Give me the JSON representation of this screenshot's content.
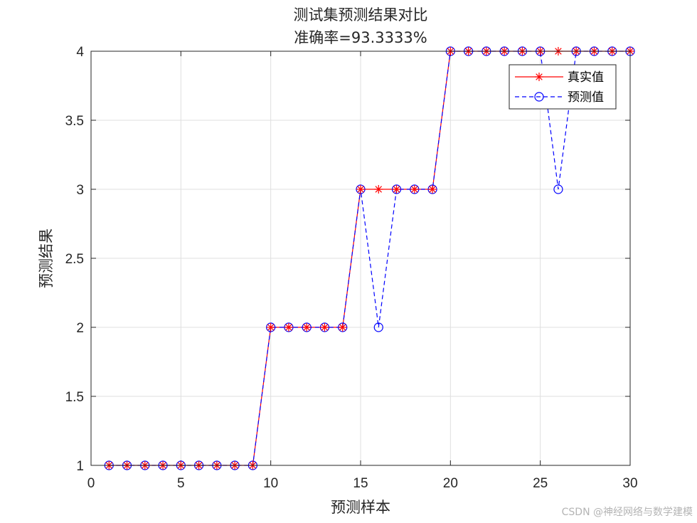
{
  "chart_data": {
    "type": "line",
    "title": "测试集预测结果对比",
    "subtitle": "准确率=93.3333%",
    "xlabel": "预测样本",
    "ylabel": "预测结果",
    "xlim": [
      0,
      30
    ],
    "ylim": [
      1,
      4
    ],
    "xticks": [
      0,
      5,
      10,
      15,
      20,
      25,
      30
    ],
    "yticks": [
      1,
      1.5,
      2,
      2.5,
      3,
      3.5,
      4
    ],
    "grid": true,
    "legend_position": "top-right",
    "x": [
      1,
      2,
      3,
      4,
      5,
      6,
      7,
      8,
      9,
      10,
      11,
      12,
      13,
      14,
      15,
      16,
      17,
      18,
      19,
      20,
      21,
      22,
      23,
      24,
      25,
      26,
      27,
      28,
      29,
      30
    ],
    "series": [
      {
        "name": "真实值",
        "color": "#ff0000",
        "line_style": "solid",
        "marker": "asterisk",
        "values": [
          1,
          1,
          1,
          1,
          1,
          1,
          1,
          1,
          1,
          2,
          2,
          2,
          2,
          2,
          3,
          3,
          3,
          3,
          3,
          4,
          4,
          4,
          4,
          4,
          4,
          4,
          4,
          4,
          4,
          4
        ]
      },
      {
        "name": "预测值",
        "color": "#0000ff",
        "line_style": "dashed",
        "marker": "circle",
        "values": [
          1,
          1,
          1,
          1,
          1,
          1,
          1,
          1,
          1,
          2,
          2,
          2,
          2,
          2,
          3,
          2,
          3,
          3,
          3,
          4,
          4,
          4,
          4,
          4,
          4,
          3,
          4,
          4,
          4,
          4
        ]
      }
    ]
  },
  "watermark": "CSDN @神经网络与数学建模"
}
